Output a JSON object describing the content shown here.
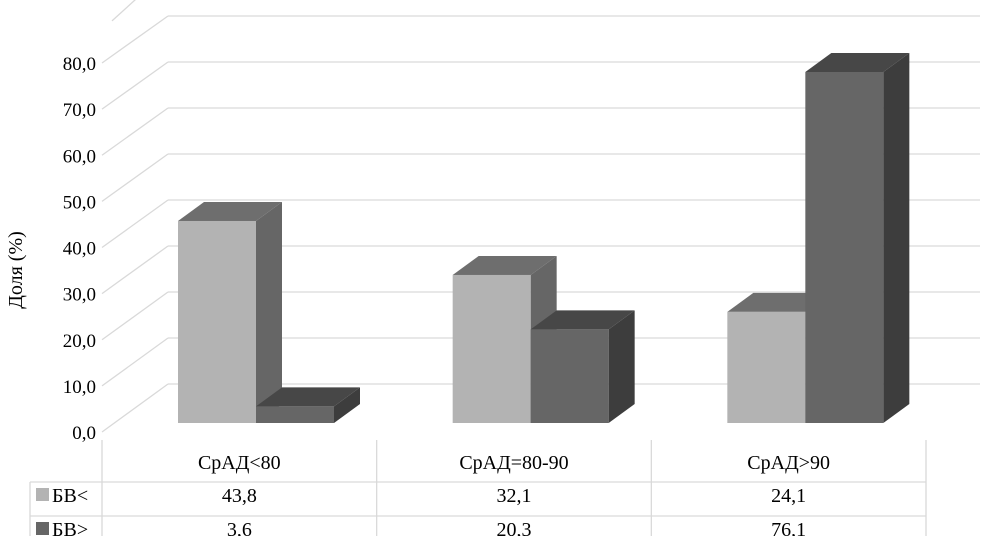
{
  "chart_data": {
    "type": "bar",
    "title": "",
    "xlabel": "",
    "ylabel": "Доля (%)",
    "ylim": [
      0,
      80
    ],
    "y_ticks": [
      "0,0",
      "10,0",
      "20,0",
      "30,0",
      "40,0",
      "50,0",
      "60,0",
      "70,0",
      "80,0"
    ],
    "categories": [
      "СрАД<80",
      "СрАД=80-90",
      "СрАД>90"
    ],
    "series": [
      {
        "name": "БВ<",
        "values": [
          43.8,
          32.1,
          24.1
        ],
        "labels": [
          "43,8",
          "32,1",
          "24,1"
        ],
        "color": "#b3b3b3"
      },
      {
        "name": "БВ>",
        "values": [
          3.6,
          20.3,
          76.1
        ],
        "labels": [
          "3,6",
          "20,3",
          "76,1"
        ],
        "color": "#666666"
      }
    ],
    "grid": true,
    "legend": "data table",
    "style": "3d-column"
  }
}
